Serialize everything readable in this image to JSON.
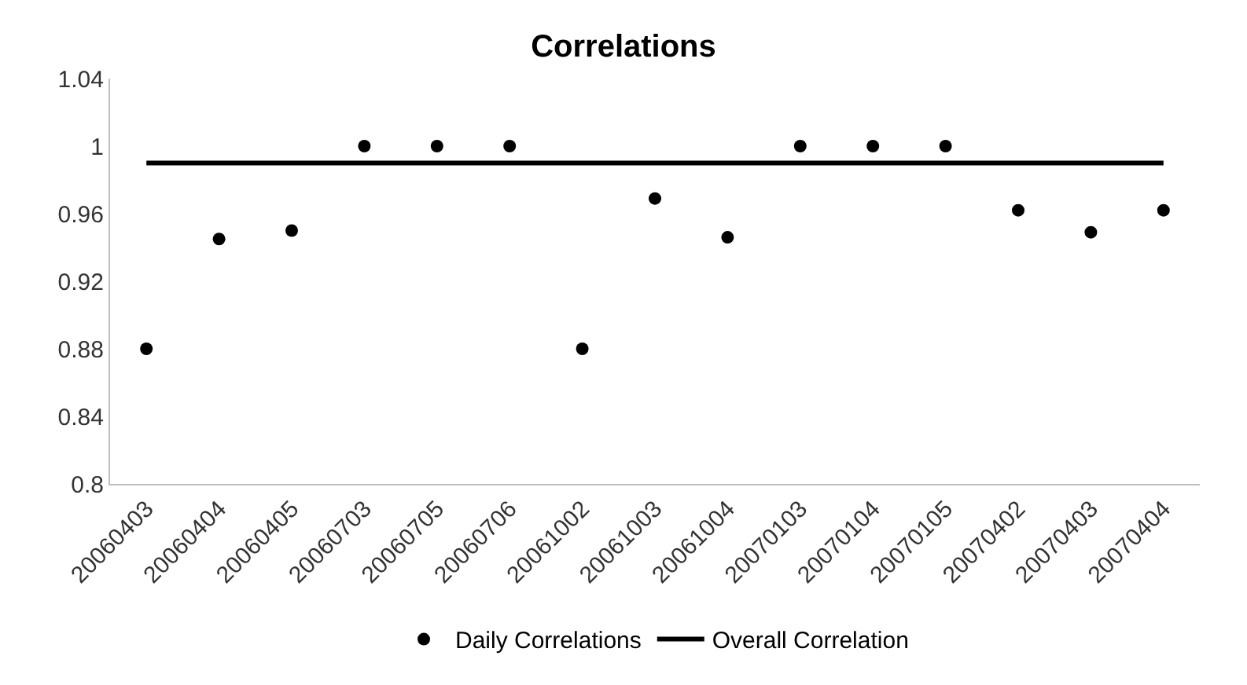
{
  "chart_data": {
    "type": "scatter",
    "title": "Correlations",
    "categories": [
      "20060403",
      "20060404",
      "20060405",
      "20060703",
      "20060705",
      "20060706",
      "20061002",
      "20061003",
      "20061004",
      "20070103",
      "20070104",
      "20070105",
      "20070402",
      "20070403",
      "20070404"
    ],
    "series": [
      {
        "name": "Daily Correlations",
        "color": "#000000",
        "marker": "circle",
        "values": [
          0.88,
          0.945,
          0.95,
          1.0,
          1.0,
          1.0,
          0.88,
          0.969,
          0.946,
          1.0,
          1.0,
          1.0,
          0.962,
          0.949,
          0.962
        ]
      },
      {
        "name": "Overall Correlation",
        "type": "line",
        "color": "#000000",
        "marker": "none",
        "line_style": "solid",
        "values": [
          0.99,
          0.99,
          0.99,
          0.99,
          0.99,
          0.99,
          0.99,
          0.99,
          0.99,
          0.99,
          0.99,
          0.99,
          0.99,
          0.99,
          0.99
        ]
      }
    ],
    "ylim": [
      0.8,
      1.04
    ],
    "yticks": [
      0.8,
      0.84,
      0.88,
      0.92,
      0.96,
      1,
      1.04
    ],
    "grid": false,
    "legend": "bottom"
  }
}
